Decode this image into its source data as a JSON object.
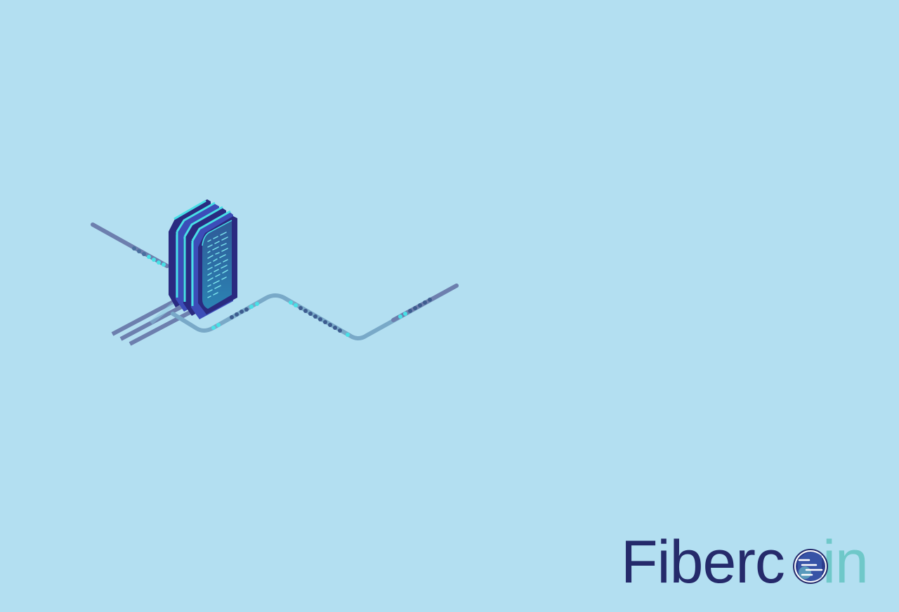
{
  "logo": {
    "part_dark": "Fiberc",
    "part_light": "in",
    "full_text": "Fibercoin",
    "colors": {
      "dark": "#252a6b",
      "light": "#6fc8c9"
    },
    "icon": "coin-icon"
  },
  "illustration": {
    "icon": "server-rack-icon",
    "colors": {
      "background": "#b3dff1",
      "cable": "#6d7fae",
      "cable_light": "#79b3d0",
      "glow": "#48e0e6",
      "server_dark": "#2a2a80",
      "server_mid": "#3c4db8"
    }
  }
}
